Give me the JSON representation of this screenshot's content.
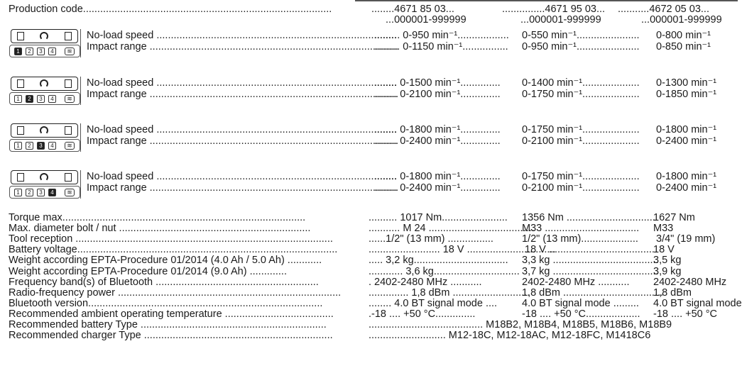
{
  "production": {
    "label": "Production code.......................................................................................",
    "codes": [
      "........4671 85 03...",
      "...............4671 95 03...",
      "...........4672 05 03..."
    ],
    "serials": [
      "...000001-999999",
      "...000001-999999",
      "...000001-999999"
    ]
  },
  "modes": [
    {
      "active_key": 1,
      "speed_label": "No-load speed ....................................................................................",
      "impact_label": "Impact range .......................................................................................",
      "speed": [
        "......... 0-950 min⁻¹..................",
        "0-550 min⁻¹......................",
        " 0-800 min⁻¹"
      ],
      "impact": [
        "......... 0-1150 min⁻¹................",
        "0-950 min⁻¹......................",
        " 0-850 min⁻¹"
      ]
    },
    {
      "active_key": 2,
      "speed_label": "No-load speed ....................................................................................",
      "impact_label": "Impact range .......................................................................................",
      "speed": [
        "........ 0-1500 min⁻¹..............",
        "0-1400 min⁻¹....................",
        " 0-1300 min⁻¹"
      ],
      "impact": [
        "........ 0-2100 min⁻¹..............",
        "0-1750 min⁻¹....................",
        " 0-1850 min⁻¹"
      ]
    },
    {
      "active_key": 3,
      "speed_label": "No-load speed ....................................................................................",
      "impact_label": "Impact range .......................................................................................",
      "speed": [
        "........ 0-1800 min⁻¹..............",
        "0-1750 min⁻¹....................",
        " 0-1800 min⁻¹"
      ],
      "impact": [
        "........ 0-2400 min⁻¹..............",
        "0-2100 min⁻¹....................",
        " 0-2400 min⁻¹"
      ]
    },
    {
      "active_key": 4,
      "speed_label": "No-load speed ....................................................................................",
      "impact_label": "Impact range .......................................................................................",
      "speed": [
        "........ 0-1800 min⁻¹..............",
        "0-1750 min⁻¹....................",
        " 0-1800 min⁻¹"
      ],
      "impact": [
        "........ 0-2400 min⁻¹..............",
        "0-2100 min⁻¹....................",
        " 0-2400 min⁻¹"
      ]
    }
  ],
  "keypad": {
    "keys": [
      "1",
      "2",
      "3",
      "4"
    ],
    "wifi_glyph": "≋"
  },
  "specs": [
    {
      "label": "Torque max.....................................................................................",
      "values": [
        ".......... 1017 Nm.......................",
        "1356 Nm ...............................",
        "1627 Nm"
      ]
    },
    {
      "label": "Max. diameter bolt / nut ...................................................................",
      "values": [
        "........... M 24 .....................................",
        "M33 .................................",
        "M33"
      ]
    },
    {
      "label": "Tool reception ..........................................................................................",
      "values": [
        "......1/2\" (13 mm) ................",
        "1/2\" (13 mm)....................",
        " 3/4\" (19 mm)"
      ]
    },
    {
      "label": "Battery voltage...........................................................................................",
      "values": [
        "......................... 18 V ...............................",
        " 18 V .....................................",
        "18 V"
      ]
    },
    {
      "label": "Weight according EPTA-Procedure 01/2014 (4.0 Ah / 5.0 Ah) ............",
      "values": [
        "..... 3,2 kg.................................",
        "3,3 kg .....................................",
        "3,5 kg"
      ]
    },
    {
      "label": "Weight according EPTA-Procedure 01/2014 (9.0 Ah) .............",
      "values": [
        "............ 3,6 kg..............................",
        "3,7 kg .....................................",
        "3,9 kg"
      ]
    },
    {
      "label": "Frequency band(s) of Bluetooth .........................................................",
      "values": [
        ". 2402-2480 MHz ...........",
        "2402-2480 MHz ...........",
        "2402-2480 MHz"
      ]
    },
    {
      "label": "Radio-frequency power ..............................................................................",
      "values": [
        ".............. 1,8 dBm ...........................",
        "1,8 dBm ...................................",
        "1,8 dBm"
      ]
    },
    {
      "label": "Bluetooth version..................................................................................",
      "values": [
        "........ 4.0 BT signal mode ....",
        "4.0 BT signal mode .........",
        "4.0 BT signal mode"
      ]
    },
    {
      "label": "Recommended ambient operating temperature ......................................",
      "values": [
        ".-18 .... +50 °C..............",
        "-18 .... +50 °C...................",
        "-18 .... +50 °C"
      ]
    },
    {
      "label": "Recommended battery Type .................................................................",
      "values": [
        "........................................ M18B2, M18B4, M18B5, M18B6, M18B9"
      ]
    },
    {
      "label": "Recommended charger Type ..................................................................",
      "values": [
        "........................... M12-18C, M12-18AC, M12-18FC, M1418C6"
      ]
    }
  ],
  "colors": {
    "text": "#1a1a1a",
    "highlight_dots": "#4a9a3a"
  }
}
